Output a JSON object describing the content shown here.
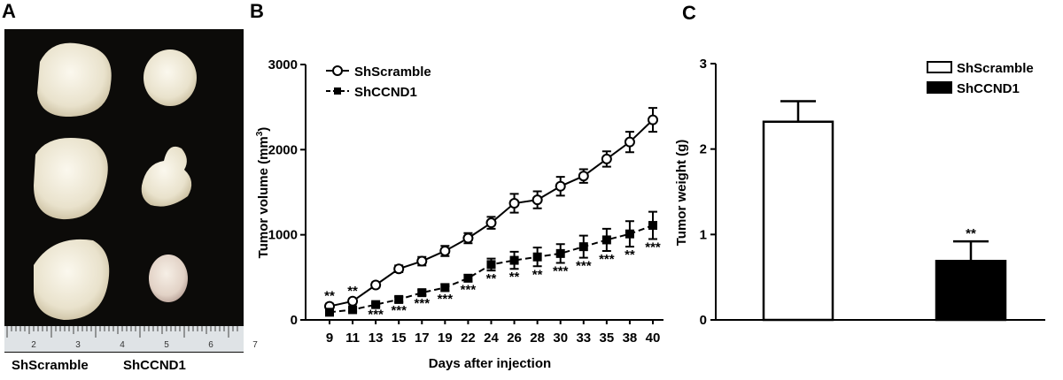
{
  "photo": {
    "panel_label": "A",
    "labels": [
      "ShScramble",
      "ShCCND1"
    ],
    "ruler_labels": [
      "2",
      "3",
      "4",
      "5",
      "6",
      "7"
    ]
  },
  "chart_data": [
    {
      "type": "line",
      "panel_label": "B",
      "categories": [
        "9",
        "11",
        "13",
        "15",
        "17",
        "19",
        "22",
        "24",
        "26",
        "28",
        "30",
        "33",
        "35",
        "38",
        "40"
      ],
      "xlabel": "Days after injection",
      "ylabel": [
        "Tumor volume (mm",
        "3",
        ")"
      ],
      "ylim": [
        0,
        3000
      ],
      "yticks": [
        0,
        1000,
        2000,
        3000
      ],
      "series": [
        {
          "name": "ShScramble",
          "color": "#000000",
          "marker": "circle",
          "line_style": "solid",
          "values": [
            160,
            220,
            410,
            600,
            690,
            810,
            960,
            1140,
            1370,
            1410,
            1570,
            1690,
            1890,
            2090,
            2350
          ],
          "errors": [
            30,
            30,
            30,
            40,
            50,
            60,
            60,
            70,
            110,
            100,
            110,
            80,
            90,
            120,
            140
          ]
        },
        {
          "name": "ShCCND1",
          "color": "#000000",
          "marker": "square",
          "line_style": "dashed",
          "values": [
            90,
            120,
            180,
            240,
            320,
            380,
            490,
            650,
            700,
            740,
            780,
            860,
            940,
            1010,
            1110
          ],
          "errors": [
            20,
            20,
            20,
            30,
            30,
            40,
            40,
            70,
            100,
            110,
            110,
            130,
            130,
            150,
            160
          ]
        }
      ],
      "significance": [
        "**",
        "**",
        "***",
        "***",
        "***",
        "***",
        "***",
        "**",
        "**",
        "**",
        "***",
        "***",
        "***",
        "**",
        "***"
      ]
    },
    {
      "type": "bar",
      "panel_label": "C",
      "ylabel": "Tumor weight (g)",
      "ylim": [
        0,
        3
      ],
      "yticks": [
        0,
        1,
        2,
        3
      ],
      "series": [
        {
          "name": "ShScramble",
          "color": "#ffffff",
          "values": [
            2.32
          ],
          "errors": [
            0.24
          ]
        },
        {
          "name": "ShCCND1",
          "color": "#000000",
          "values": [
            0.69
          ],
          "errors": [
            0.23
          ],
          "annotations": [
            "**"
          ]
        }
      ]
    }
  ]
}
